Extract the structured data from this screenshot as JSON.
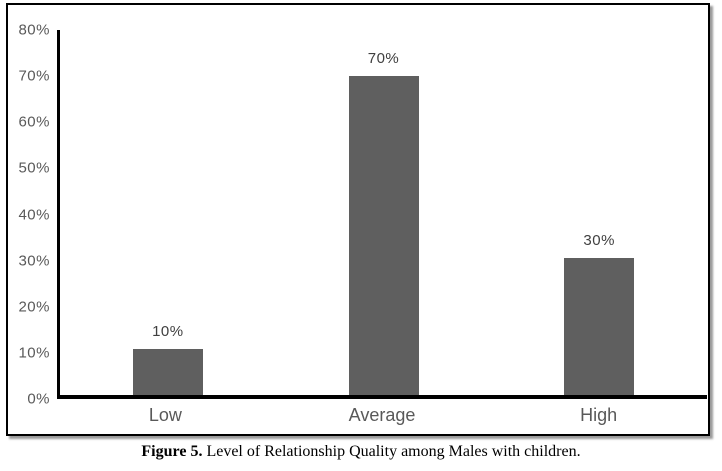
{
  "chart_data": {
    "type": "bar",
    "categories": [
      "Low",
      "Average",
      "High"
    ],
    "values": [
      10,
      70,
      30
    ],
    "data_labels": [
      "10%",
      "70%",
      "30%"
    ],
    "y_ticks": [
      "80%",
      "70%",
      "60%",
      "50%",
      "40%",
      "30%",
      "20%",
      "10%",
      "0%"
    ],
    "ylim": [
      0,
      80
    ],
    "title": "",
    "xlabel": "",
    "ylabel": "",
    "grid": false,
    "legend": "none",
    "bar_color": "#5f5f5f",
    "axis_color": "#000000",
    "tick_label_color": "#595959"
  },
  "caption": {
    "prefix": "Figure 5.",
    "text": " Level of Relationship Quality among Males with children."
  }
}
